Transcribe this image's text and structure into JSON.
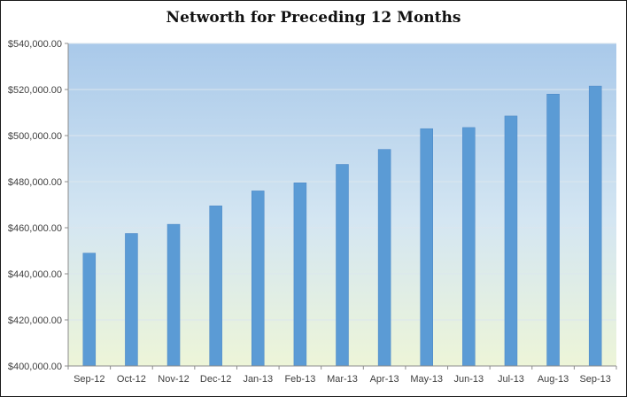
{
  "chart_data": {
    "type": "bar",
    "title": "Networth for Preceding 12 Months",
    "categories": [
      "Sep-12",
      "Oct-12",
      "Nov-12",
      "Dec-12",
      "Jan-13",
      "Feb-13",
      "Mar-13",
      "Apr-13",
      "May-13",
      "Jun-13",
      "Jul-13",
      "Aug-13",
      "Sep-13"
    ],
    "values": [
      449000,
      457500,
      461500,
      469500,
      476000,
      479500,
      487500,
      494000,
      503000,
      503500,
      508500,
      518000,
      521500
    ],
    "ylim": [
      400000,
      540000
    ],
    "y_ticks": [
      400000,
      420000,
      440000,
      460000,
      480000,
      500000,
      520000,
      540000
    ],
    "y_tick_labels": [
      "$400,000.00",
      "$420,000.00",
      "$440,000.00",
      "$460,000.00",
      "$480,000.00",
      "$500,000.00",
      "$520,000.00",
      "$540,000.00"
    ],
    "xlabel": "",
    "ylabel": "",
    "grid": true,
    "legend": "none",
    "colors": {
      "bar": "#5b9bd5",
      "bar_edge": "#4a86c5",
      "plot_top": "#a9c9ea",
      "plot_bottom": "#edf5d8",
      "gridline": "#dce6ee",
      "axis": "#8c8c8c"
    }
  }
}
